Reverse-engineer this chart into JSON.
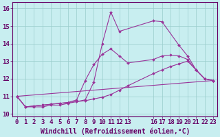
{
  "xlabel": "Windchill (Refroidissement éolien,°C)",
  "bg_color": "#c8eef0",
  "line_color": "#993399",
  "grid_color": "#99cccc",
  "ylim": [
    9.85,
    16.35
  ],
  "xlim": [
    -0.5,
    23.5
  ],
  "yticks": [
    10,
    11,
    12,
    13,
    14,
    15,
    16
  ],
  "xticks": [
    0,
    1,
    2,
    3,
    4,
    5,
    6,
    7,
    8,
    9,
    10,
    11,
    12,
    13,
    16,
    17,
    18,
    19,
    20,
    21,
    22,
    23
  ],
  "series": [
    {
      "x": [
        0,
        1,
        2,
        3,
        4,
        5,
        6,
        7,
        8,
        9,
        10,
        11,
        12,
        16,
        17,
        19,
        20,
        21,
        22,
        23
      ],
      "y": [
        11.0,
        10.4,
        10.4,
        10.4,
        10.5,
        10.5,
        10.6,
        10.7,
        10.8,
        11.8,
        14.0,
        15.8,
        14.7,
        15.3,
        15.25,
        13.9,
        13.3,
        12.5,
        12.0,
        11.9
      ]
    },
    {
      "x": [
        0,
        1,
        2,
        3,
        4,
        5,
        6,
        7,
        8,
        9,
        10,
        11,
        12,
        13,
        16,
        17,
        18,
        19,
        20,
        21,
        22,
        23
      ],
      "y": [
        11.0,
        10.4,
        10.45,
        10.5,
        10.55,
        10.6,
        10.65,
        10.8,
        11.9,
        12.8,
        13.4,
        13.7,
        13.3,
        12.9,
        13.1,
        13.3,
        13.35,
        13.3,
        13.1,
        12.5,
        12.0,
        11.9
      ]
    },
    {
      "x": [
        0,
        1,
        2,
        3,
        4,
        5,
        6,
        7,
        8,
        9,
        10,
        11,
        12,
        13,
        16,
        17,
        18,
        19,
        20,
        21,
        22,
        23
      ],
      "y": [
        11.0,
        10.4,
        10.45,
        10.5,
        10.55,
        10.6,
        10.65,
        10.7,
        10.75,
        10.85,
        10.95,
        11.1,
        11.35,
        11.6,
        12.3,
        12.5,
        12.7,
        12.85,
        13.0,
        12.5,
        12.0,
        11.9
      ]
    },
    {
      "x": [
        0,
        23
      ],
      "y": [
        11.0,
        11.9
      ]
    }
  ],
  "font_color": "#660066",
  "tick_font_size": 6.5,
  "label_font_size": 7.0
}
